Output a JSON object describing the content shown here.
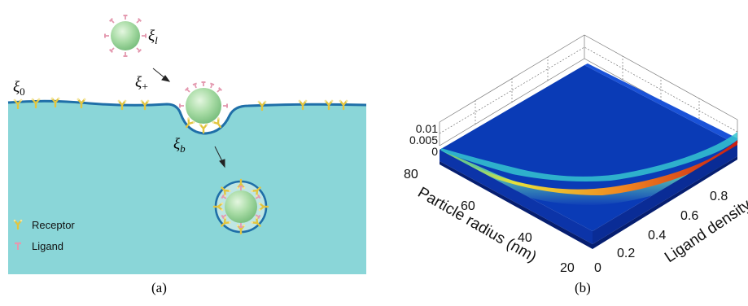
{
  "panel_a": {
    "caption": "(a)",
    "labels": {
      "xi_l": "l",
      "xi_0": "0",
      "xi_plus": "+",
      "xi_b": "b",
      "xi_symbol": "ξ"
    },
    "legend": {
      "receptor": "Receptor",
      "ligand": "Ligand"
    },
    "colors": {
      "cell_fill": "#8ad6d8",
      "membrane": "#1f6fa8",
      "particle": "#a3dba3",
      "receptor": "#e8d04a",
      "ligand": "#e49ab0"
    }
  },
  "panel_b": {
    "caption": "(b)",
    "z_ticks": [
      "0.01",
      "0.005",
      "0"
    ],
    "y_ticks": [
      "80",
      "60",
      "40",
      "20"
    ],
    "x_ticks": [
      "0",
      "0.2",
      "0.4",
      "0.6",
      "0.8"
    ],
    "y_label": "Particle radius (nm)",
    "x_label": "Ligand density"
  },
  "chart_data": {
    "type": "surface",
    "x_axis": {
      "label": "Ligand density",
      "range": [
        0,
        0.9
      ],
      "ticks": [
        0,
        0.2,
        0.4,
        0.6,
        0.8
      ]
    },
    "y_axis": {
      "label": "Particle radius (nm)",
      "range": [
        20,
        80
      ],
      "ticks": [
        20,
        40,
        60,
        80
      ]
    },
    "z_axis": {
      "range": [
        0,
        0.01
      ],
      "ticks": [
        0,
        0.005,
        0.01
      ]
    },
    "colormap": "jet",
    "grid": true
  }
}
